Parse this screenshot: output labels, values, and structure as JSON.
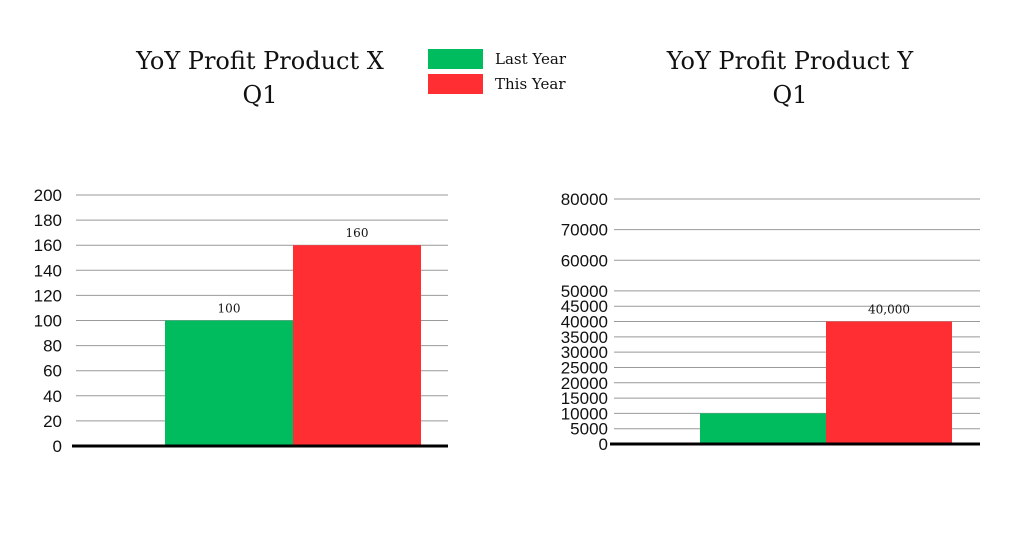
{
  "legend": [
    {
      "label": "Last Year",
      "color": "#00bc5f"
    },
    {
      "label": "This Year",
      "color": "#ff2e33"
    }
  ],
  "chart_data": [
    {
      "type": "bar",
      "title": "YoY Profit Product X",
      "subtitle": "Q1",
      "series": [
        {
          "name": "Last Year",
          "values": [
            100
          ]
        },
        {
          "name": "This Year",
          "values": [
            160
          ]
        }
      ],
      "data_labels": [
        "100",
        "160"
      ],
      "ylim": [
        0,
        200
      ],
      "yticks": [
        "0",
        "20",
        "40",
        "60",
        "80",
        "100",
        "120",
        "140",
        "160",
        "180",
        "200"
      ],
      "grid": true
    },
    {
      "type": "bar",
      "title": "YoY Profit Product Y",
      "subtitle": "Q1",
      "series": [
        {
          "name": "Last Year",
          "values": [
            10000
          ]
        },
        {
          "name": "This Year",
          "values": [
            40000
          ]
        }
      ],
      "data_labels": [
        "",
        "40,000"
      ],
      "ylim": [
        0,
        80000
      ],
      "yticks": [
        "0",
        "5000",
        "10000",
        "15000",
        "20000",
        "25000",
        "30000",
        "35000",
        "40000",
        "45000",
        "50000",
        "60000",
        "70000",
        "80000"
      ],
      "grid": true
    }
  ]
}
